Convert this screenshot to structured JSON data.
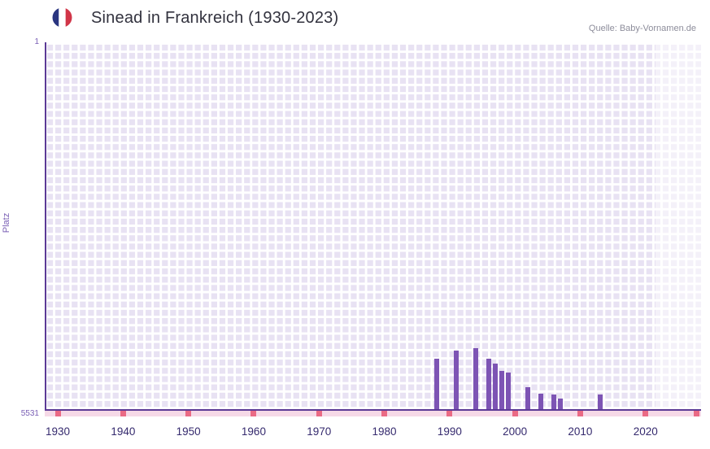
{
  "header": {
    "title": "Sinead in Frankreich (1930-2023)",
    "source": "Quelle: Baby-Vornamen.de"
  },
  "chart_data": {
    "type": "bar",
    "title": "Sinead in Frankreich (1930-2023)",
    "xlabel": "",
    "ylabel": "Platz",
    "y_axis": {
      "top_label": "1",
      "bottom_label": "5531",
      "min": 1,
      "max": 5531,
      "inverted": true
    },
    "x_axis": {
      "tick_years": [
        1930,
        1940,
        1950,
        1960,
        1970,
        1980,
        1990,
        2000,
        2010,
        2020
      ],
      "domain": [
        1928,
        2028.5
      ],
      "end_tick": true
    },
    "series": [
      {
        "name": "Platz",
        "points": [
          {
            "year": 1988,
            "rank": 4740
          },
          {
            "year": 1991,
            "rank": 4620
          },
          {
            "year": 1994,
            "rank": 4590
          },
          {
            "year": 1996,
            "rank": 4740
          },
          {
            "year": 1997,
            "rank": 4820
          },
          {
            "year": 1998,
            "rank": 4930
          },
          {
            "year": 1999,
            "rank": 4950
          },
          {
            "year": 2002,
            "rank": 5170
          },
          {
            "year": 2004,
            "rank": 5270
          },
          {
            "year": 2006,
            "rank": 5290
          },
          {
            "year": 2007,
            "rank": 5350
          },
          {
            "year": 2013,
            "rank": 5280
          }
        ]
      }
    ],
    "no_data_region": {
      "start_year": 2021.5,
      "end_year": 2028.5
    },
    "legend": "none",
    "grid": true,
    "colors": {
      "bar": "#7d54b4",
      "axis": "#5c3a96",
      "grid_bg": "#e8e2f3",
      "grid_line": "#ffffff",
      "strip": "#f6d9e7",
      "strip_tick": "#ea6a85",
      "tick_label": "#352a6e",
      "y_label": "#7a5fb5"
    },
    "flag_colors": {
      "blue": "#2a3580",
      "white": "#ffffff",
      "red": "#d13548"
    }
  }
}
